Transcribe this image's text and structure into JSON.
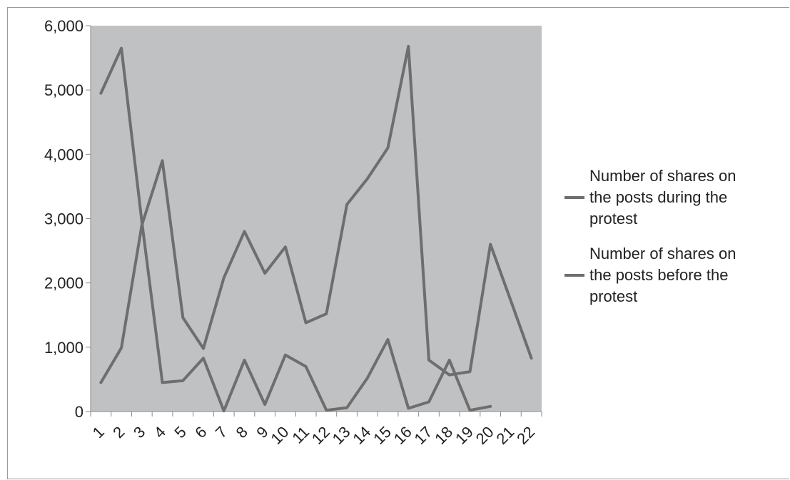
{
  "chart_data": {
    "type": "line",
    "x": [
      "1",
      "2",
      "3",
      "4",
      "5",
      "6",
      "7",
      "8",
      "9",
      "10",
      "11",
      "12",
      "13",
      "14",
      "15",
      "16",
      "17",
      "18",
      "19",
      "20",
      "21",
      "22"
    ],
    "ylim": [
      0,
      6000
    ],
    "yticks": [
      0,
      1000,
      2000,
      3000,
      4000,
      5000,
      6000
    ],
    "yticklabels": [
      "0",
      "1,000",
      "2,000",
      "3,000",
      "4,000",
      "5,000",
      "6,000"
    ],
    "grid": false,
    "legend_position": "right",
    "plot_background": "#c0c1c3",
    "series": [
      {
        "name": "Number of shares on the posts during the protest",
        "legend_lines": [
          "Number of shares on",
          "the posts during the",
          "protest"
        ],
        "color": "#6e6e6e",
        "values": [
          4950,
          5650,
          2950,
          450,
          480,
          830,
          10,
          800,
          110,
          880,
          700,
          20,
          60,
          520,
          1120,
          50,
          150,
          800,
          20,
          80,
          null,
          null
        ]
      },
      {
        "name": "Number of shares on the posts before the protest",
        "legend_lines": [
          "Number of shares on",
          "the posts before the",
          "protest"
        ],
        "color": "#6e6e6e",
        "values": [
          450,
          990,
          2900,
          3900,
          1460,
          980,
          2080,
          2800,
          2150,
          2560,
          1380,
          1520,
          3220,
          3620,
          4100,
          5680,
          800,
          570,
          620,
          2600,
          1720,
          830
        ]
      }
    ]
  }
}
